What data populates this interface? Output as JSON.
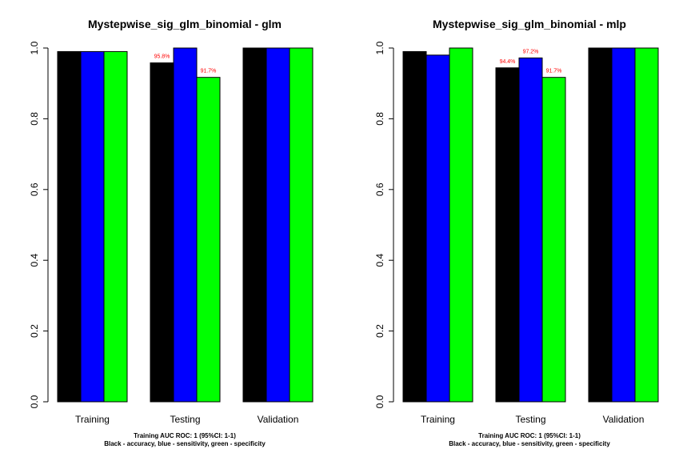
{
  "colors": {
    "accuracy": "#000000",
    "sensitivity": "#0000ff",
    "specificity": "#00ff00",
    "data_label": "#ff0000"
  },
  "chart_data": [
    {
      "type": "bar",
      "title": "Mystepwise_sig_glm_binomial - glm",
      "categories": [
        "Training",
        "Testing",
        "Validation"
      ],
      "ylim": [
        0,
        1
      ],
      "yticks": [
        "0.0",
        "0.2",
        "0.4",
        "0.6",
        "0.8",
        "1.0"
      ],
      "grid": false,
      "series": [
        {
          "key": "accuracy",
          "values": [
            0.99,
            0.958,
            1.0
          ]
        },
        {
          "key": "sensitivity",
          "values": [
            0.99,
            1.0,
            1.0
          ]
        },
        {
          "key": "specificity",
          "values": [
            0.99,
            0.917,
            1.0
          ]
        }
      ],
      "data_labels": [
        {
          "category": 1,
          "series": 0,
          "text": "95.8%"
        },
        {
          "category": 1,
          "series": 2,
          "text": "91.7%"
        }
      ],
      "footnote": [
        "Training AUC ROC: 1 (95%CI: 1-1)",
        "Black - accuracy, blue - sensitivity, green - specificity"
      ]
    },
    {
      "type": "bar",
      "title": "Mystepwise_sig_glm_binomial - mlp",
      "categories": [
        "Training",
        "Testing",
        "Validation"
      ],
      "ylim": [
        0,
        1
      ],
      "yticks": [
        "0.0",
        "0.2",
        "0.4",
        "0.6",
        "0.8",
        "1.0"
      ],
      "grid": false,
      "series": [
        {
          "key": "accuracy",
          "values": [
            0.99,
            0.944,
            1.0
          ]
        },
        {
          "key": "sensitivity",
          "values": [
            0.98,
            0.972,
            1.0
          ]
        },
        {
          "key": "specificity",
          "values": [
            1.0,
            0.917,
            1.0
          ]
        }
      ],
      "data_labels": [
        {
          "category": 1,
          "series": 0,
          "text": "94.4%"
        },
        {
          "category": 1,
          "series": 1,
          "text": "97.2%"
        },
        {
          "category": 1,
          "series": 2,
          "text": "91.7%"
        }
      ],
      "footnote": [
        "Training AUC ROC: 1 (95%CI: 1-1)",
        "Black - accuracy, blue - sensitivity, green - specificity"
      ]
    }
  ]
}
